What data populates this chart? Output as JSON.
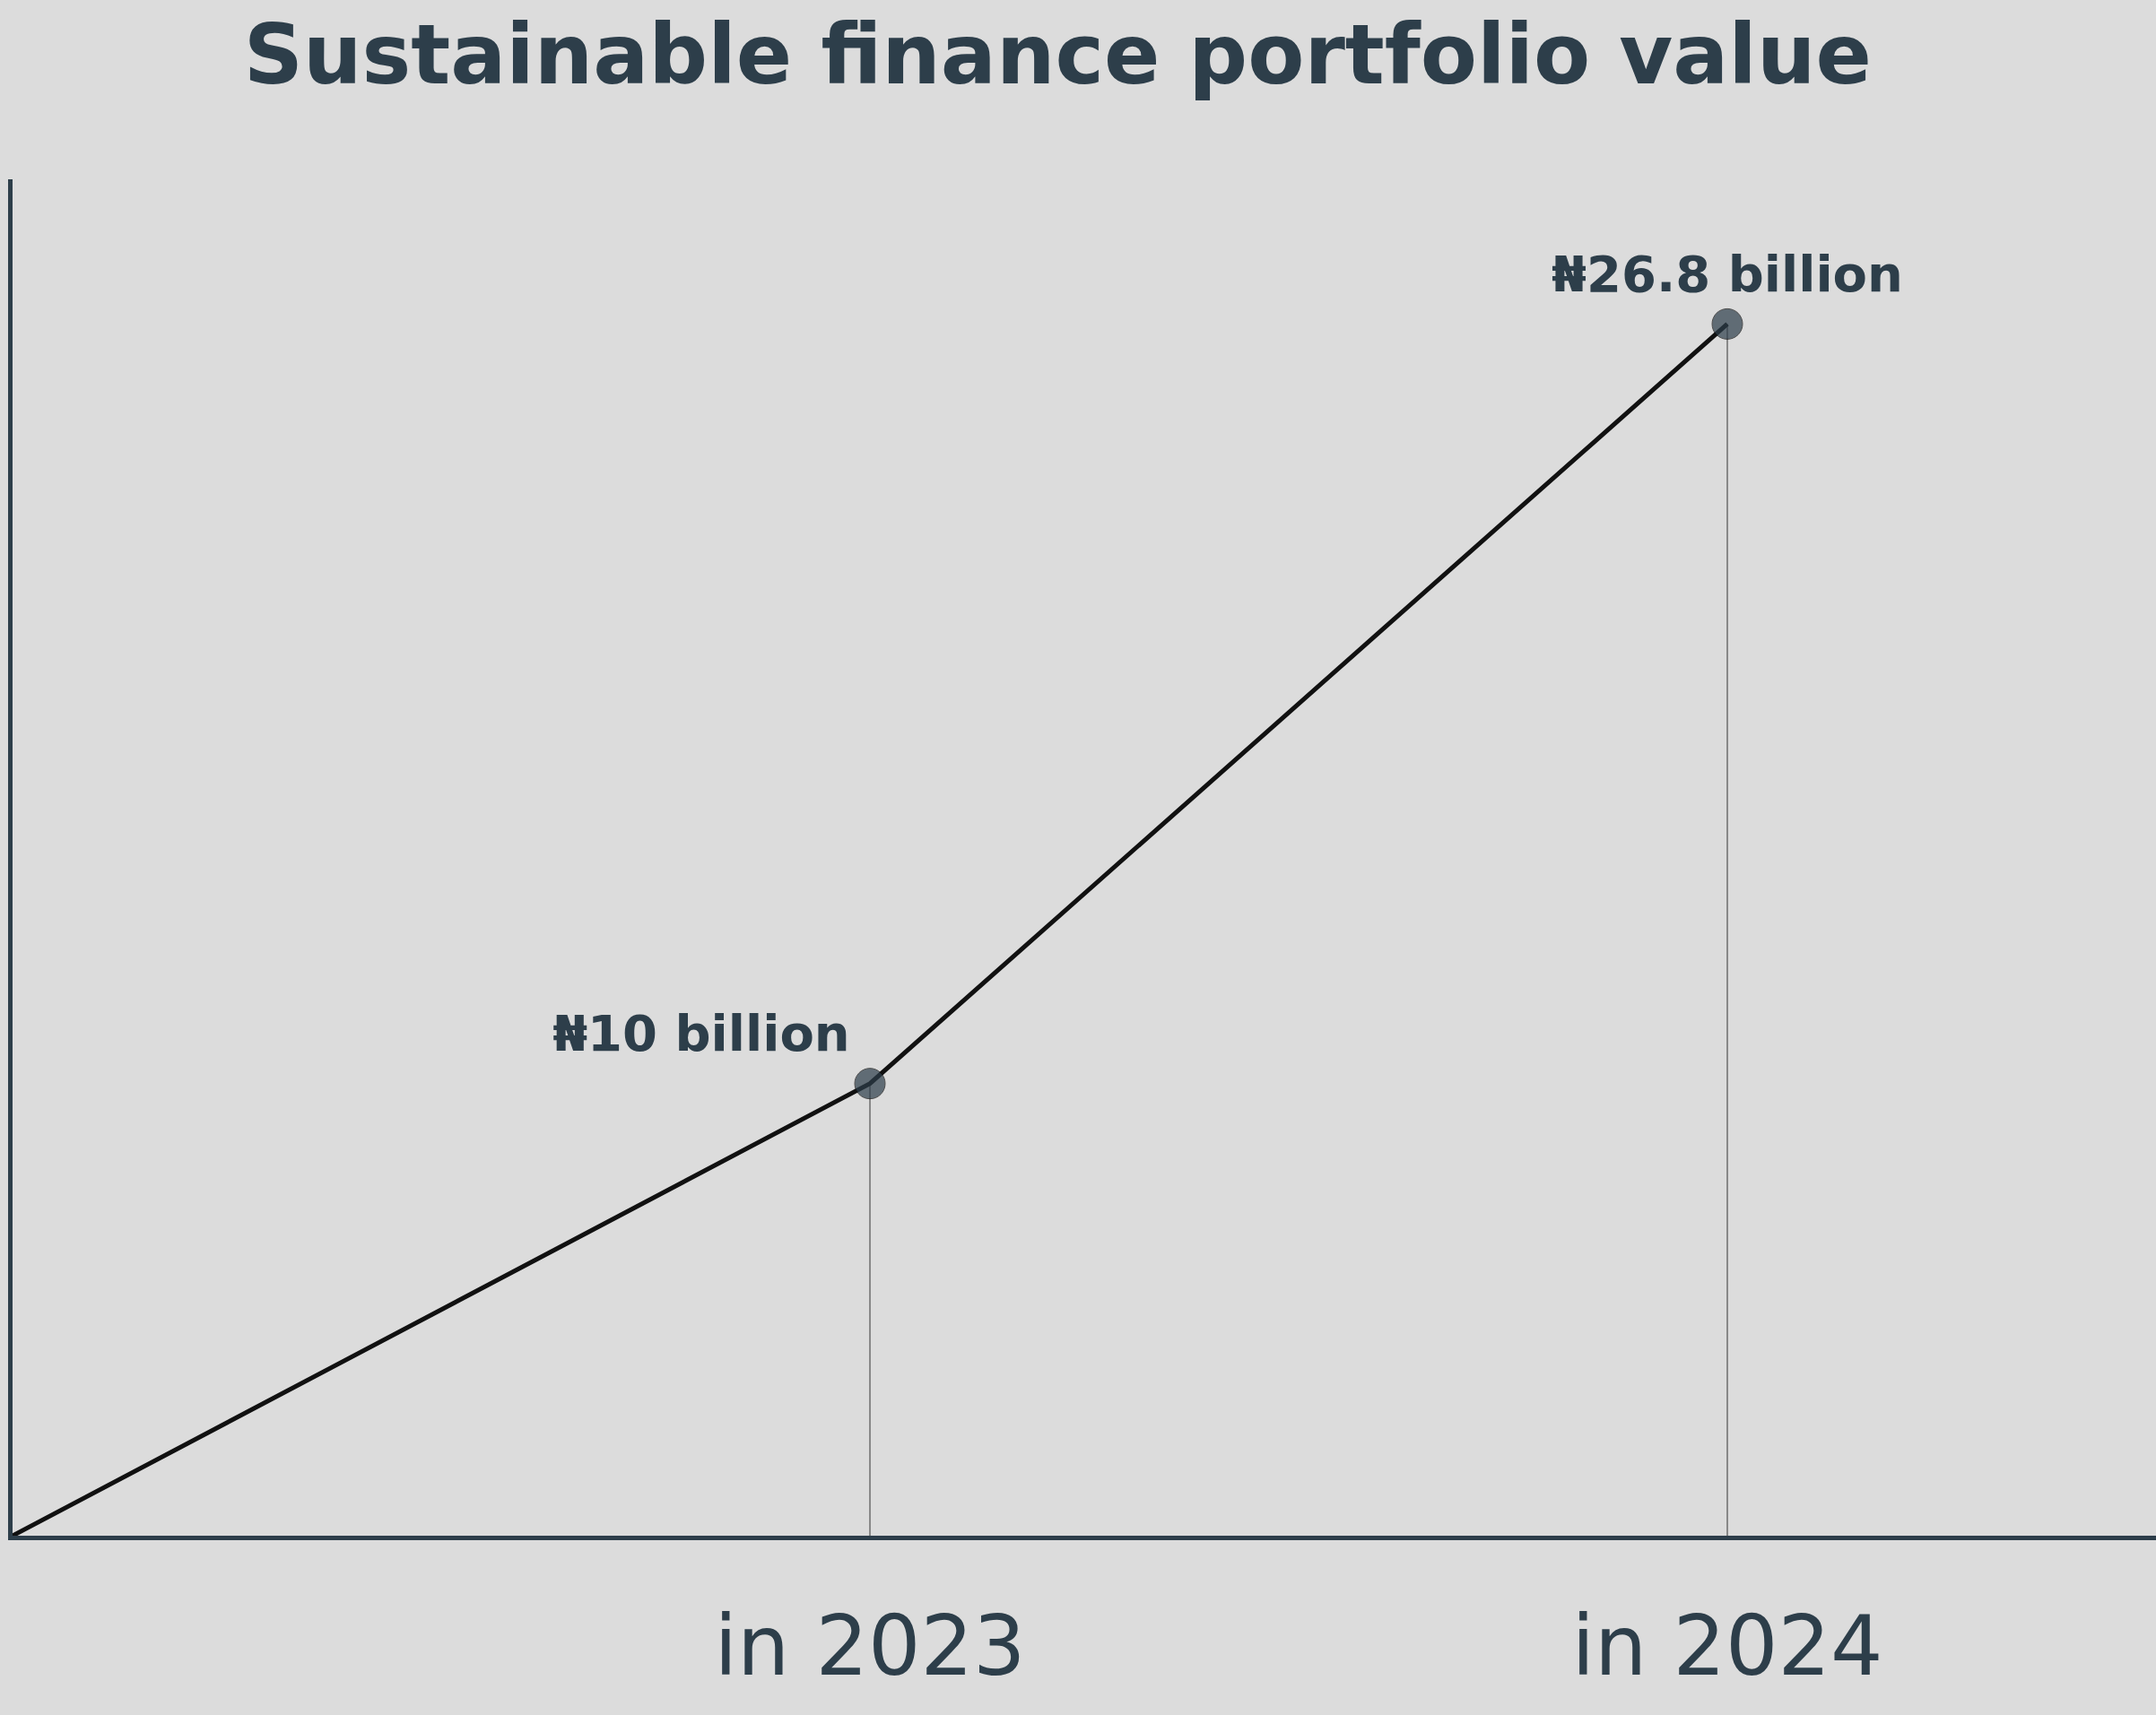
{
  "chart_data": {
    "type": "line",
    "title": "Sustainable finance portfolio value",
    "categories": [
      null,
      "in 2023",
      "in 2024"
    ],
    "series": [
      {
        "color": "#111111",
        "values": [
          0,
          10,
          26.8
        ],
        "value_labels": [
          null,
          "₦10 billion",
          "₦26.8 billion"
        ]
      }
    ],
    "ylim": [
      0,
      30
    ],
    "tick_labels": "x",
    "grid": false,
    "marker": "circle",
    "line_style": "solid",
    "ref_lines": [
      {
        "axis": "x",
        "value": "in 2023",
        "color": "#888888"
      },
      {
        "axis": "x",
        "value": "in 2024",
        "color": "#888888"
      }
    ]
  }
}
